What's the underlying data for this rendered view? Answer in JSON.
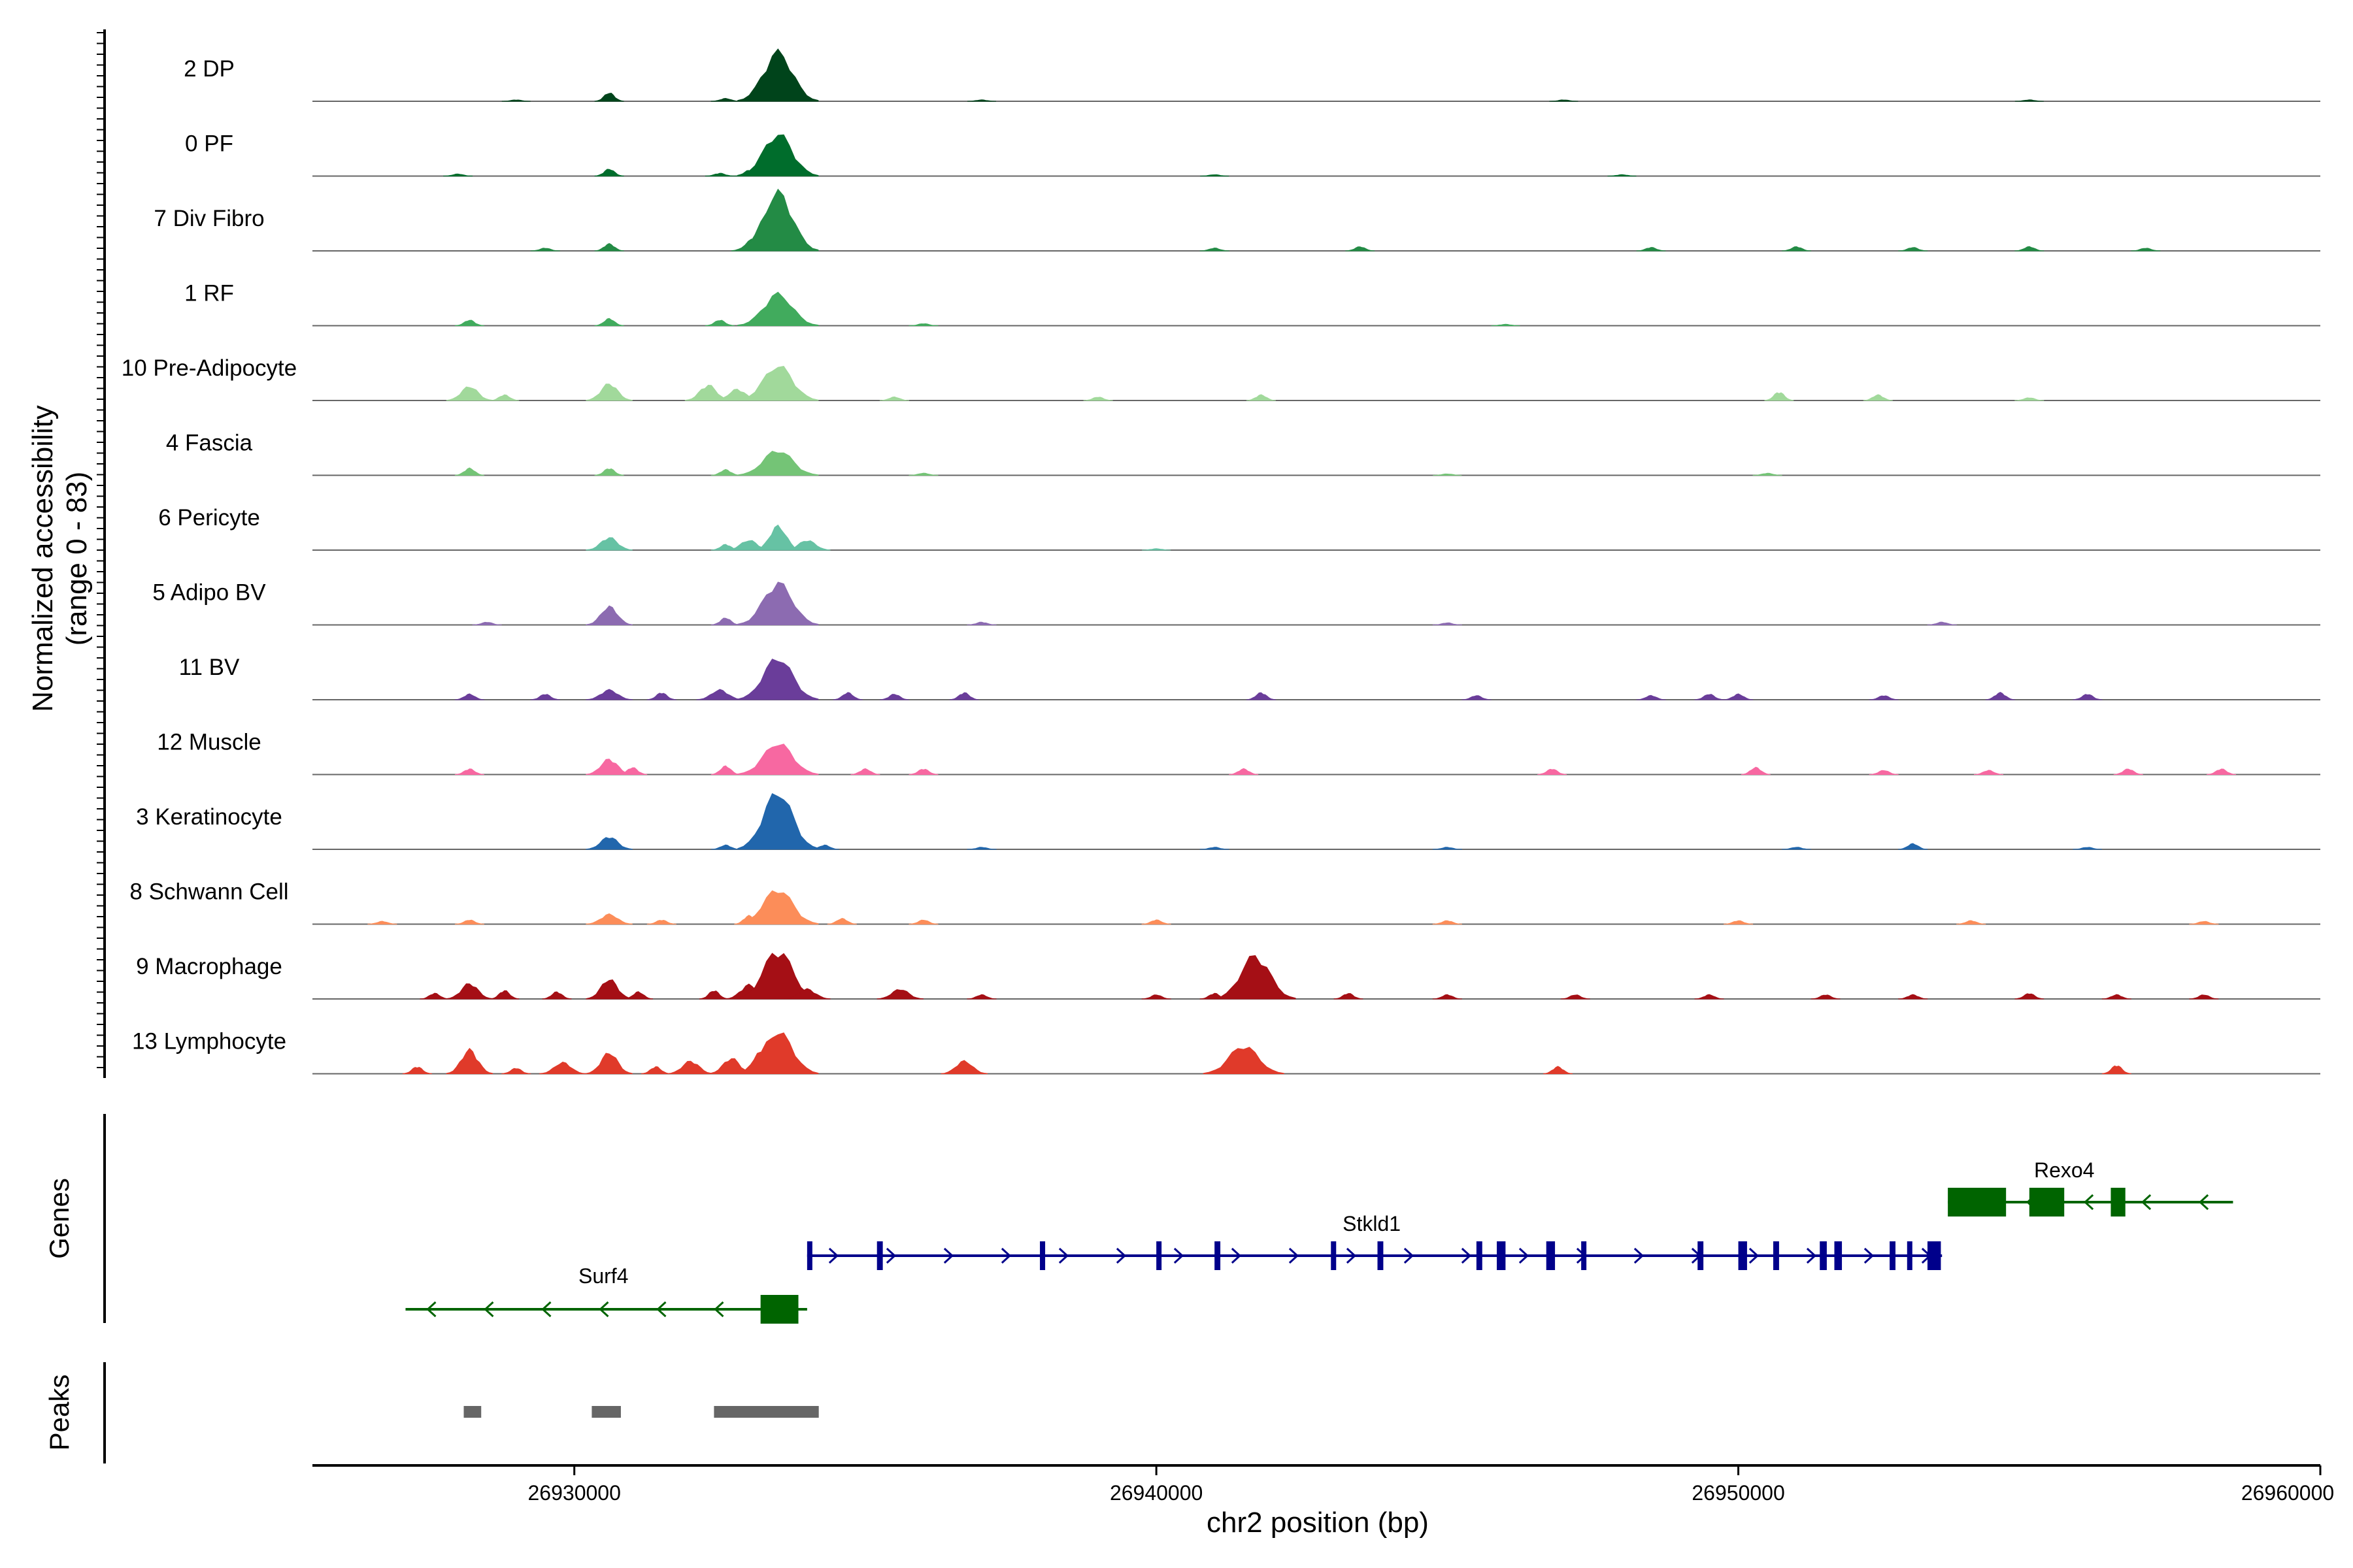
{
  "chart_data": {
    "type": "area",
    "title": "",
    "ylabel_line1": "Normalized accessibility",
    "ylabel_line2": "(range 0 - 83)",
    "xlabel": "chr2 position (bp)",
    "y_range": [
      0,
      83
    ],
    "xlim": [
      26925500,
      26960000
    ],
    "x_ticks": [
      {
        "value": 26930000,
        "label": "26930000"
      },
      {
        "value": 26940000,
        "label": "26940000"
      },
      {
        "value": 26950000,
        "label": "26950000"
      },
      {
        "value": 26960000,
        "label": "26960000"
      }
    ],
    "tracks": [
      {
        "name": "2 DP",
        "color": "#00441b",
        "peaks": [
          [
            26930600,
            12
          ],
          [
            26932600,
            4
          ],
          [
            26933100,
            8
          ],
          [
            26933500,
            70
          ],
          [
            26929000,
            2
          ],
          [
            26937000,
            2
          ],
          [
            26947000,
            2
          ],
          [
            26955000,
            2
          ]
        ]
      },
      {
        "name": "0 PF",
        "color": "#006d2c",
        "peaks": [
          [
            26930600,
            10
          ],
          [
            26932500,
            4
          ],
          [
            26933000,
            8
          ],
          [
            26933500,
            60
          ],
          [
            26928000,
            3
          ],
          [
            26941000,
            2
          ],
          [
            26948000,
            2
          ]
        ]
      },
      {
        "name": "7 Div Fibro",
        "color": "#238b45",
        "peaks": [
          [
            26930600,
            10
          ],
          [
            26933100,
            18
          ],
          [
            26933500,
            83
          ],
          [
            26929500,
            4
          ],
          [
            26941000,
            4
          ],
          [
            26943500,
            6
          ],
          [
            26948500,
            5
          ],
          [
            26951000,
            6
          ],
          [
            26953000,
            5
          ],
          [
            26955000,
            6
          ],
          [
            26957000,
            4
          ]
        ]
      },
      {
        "name": "1 RF",
        "color": "#41ab5d",
        "peaks": [
          [
            26928200,
            8
          ],
          [
            26930600,
            10
          ],
          [
            26932500,
            8
          ],
          [
            26933500,
            45
          ],
          [
            26936000,
            3
          ],
          [
            26946000,
            2
          ]
        ]
      },
      {
        "name": "10 Pre-Adipocyte",
        "color": "#a1d99b",
        "peaks": [
          [
            26928200,
            20
          ],
          [
            26928800,
            8
          ],
          [
            26930600,
            24
          ],
          [
            26932300,
            22
          ],
          [
            26932800,
            16
          ],
          [
            26933500,
            50
          ],
          [
            26935500,
            5
          ],
          [
            26939000,
            5
          ],
          [
            26941800,
            8
          ],
          [
            26950700,
            12
          ],
          [
            26952400,
            8
          ],
          [
            26955000,
            4
          ]
        ]
      },
      {
        "name": "4 Fascia",
        "color": "#74c476",
        "peaks": [
          [
            26928200,
            10
          ],
          [
            26930600,
            10
          ],
          [
            26932600,
            8
          ],
          [
            26933500,
            36
          ],
          [
            26936000,
            3
          ],
          [
            26945000,
            2
          ],
          [
            26950500,
            3
          ]
        ]
      },
      {
        "name": "6 Pericyte",
        "color": "#66c2a4",
        "peaks": [
          [
            26930600,
            18
          ],
          [
            26932600,
            8
          ],
          [
            26933000,
            14
          ],
          [
            26933500,
            34
          ],
          [
            26934000,
            14
          ],
          [
            26940000,
            2
          ]
        ]
      },
      {
        "name": "5 Adipo BV",
        "color": "#8c6bb1",
        "peaks": [
          [
            26928500,
            4
          ],
          [
            26930600,
            26
          ],
          [
            26932600,
            10
          ],
          [
            26933500,
            60
          ],
          [
            26937000,
            4
          ],
          [
            26945000,
            3
          ],
          [
            26953500,
            4
          ]
        ]
      },
      {
        "name": "11 BV",
        "color": "#6a3d9a",
        "peaks": [
          [
            26928200,
            8
          ],
          [
            26929500,
            8
          ],
          [
            26930600,
            14
          ],
          [
            26931500,
            10
          ],
          [
            26932500,
            14
          ],
          [
            26933500,
            60
          ],
          [
            26934700,
            10
          ],
          [
            26935500,
            8
          ],
          [
            26936700,
            10
          ],
          [
            26941800,
            10
          ],
          [
            26945500,
            6
          ],
          [
            26948500,
            6
          ],
          [
            26949500,
            8
          ],
          [
            26950000,
            8
          ],
          [
            26952500,
            6
          ],
          [
            26954500,
            10
          ],
          [
            26956000,
            8
          ]
        ]
      },
      {
        "name": "12 Muscle",
        "color": "#f768a1",
        "peaks": [
          [
            26928200,
            8
          ],
          [
            26930600,
            22
          ],
          [
            26931000,
            10
          ],
          [
            26932600,
            12
          ],
          [
            26933500,
            45
          ],
          [
            26935000,
            8
          ],
          [
            26936000,
            8
          ],
          [
            26941500,
            8
          ],
          [
            26946800,
            8
          ],
          [
            26950300,
            10
          ],
          [
            26952500,
            6
          ],
          [
            26954300,
            6
          ],
          [
            26956700,
            8
          ],
          [
            26958300,
            8
          ]
        ]
      },
      {
        "name": "3 Keratinocyte",
        "color": "#2166ac",
        "peaks": [
          [
            26930600,
            18
          ],
          [
            26932600,
            6
          ],
          [
            26933500,
            82
          ],
          [
            26934300,
            6
          ],
          [
            26937000,
            3
          ],
          [
            26941000,
            3
          ],
          [
            26945000,
            3
          ],
          [
            26951000,
            3
          ],
          [
            26953000,
            8
          ],
          [
            26956000,
            3
          ]
        ]
      },
      {
        "name": "8 Schwann Cell",
        "color": "#fc8d59",
        "peaks": [
          [
            26926700,
            4
          ],
          [
            26928200,
            6
          ],
          [
            26930600,
            14
          ],
          [
            26931500,
            6
          ],
          [
            26933000,
            12
          ],
          [
            26933500,
            50
          ],
          [
            26934600,
            8
          ],
          [
            26936000,
            6
          ],
          [
            26940000,
            6
          ],
          [
            26945000,
            5
          ],
          [
            26950000,
            5
          ],
          [
            26954000,
            5
          ],
          [
            26958000,
            4
          ]
        ]
      },
      {
        "name": "9 Macrophage",
        "color": "#a50f15",
        "peaks": [
          [
            26927600,
            8
          ],
          [
            26928200,
            22
          ],
          [
            26928800,
            12
          ],
          [
            26929700,
            10
          ],
          [
            26930600,
            28
          ],
          [
            26931100,
            10
          ],
          [
            26932400,
            12
          ],
          [
            26933000,
            20
          ],
          [
            26933500,
            70
          ],
          [
            26934000,
            14
          ],
          [
            26935600,
            14
          ],
          [
            26937000,
            6
          ],
          [
            26940000,
            6
          ],
          [
            26941000,
            8
          ],
          [
            26941700,
            62
          ],
          [
            26943300,
            8
          ],
          [
            26945000,
            6
          ],
          [
            26947200,
            6
          ],
          [
            26949500,
            6
          ],
          [
            26951500,
            6
          ],
          [
            26953000,
            6
          ],
          [
            26955000,
            8
          ],
          [
            26956500,
            6
          ],
          [
            26958000,
            6
          ]
        ]
      },
      {
        "name": "13 Lymphocyte",
        "color": "#e03a2a",
        "peaks": [
          [
            26927300,
            10
          ],
          [
            26928200,
            34
          ],
          [
            26929000,
            8
          ],
          [
            26929800,
            16
          ],
          [
            26930600,
            30
          ],
          [
            26931400,
            10
          ],
          [
            26932000,
            18
          ],
          [
            26932700,
            22
          ],
          [
            26933200,
            30
          ],
          [
            26933500,
            60
          ],
          [
            26936700,
            18
          ],
          [
            26941500,
            40
          ],
          [
            26946900,
            10
          ],
          [
            26956500,
            12
          ]
        ]
      }
    ],
    "genes": [
      {
        "name": "Surf4",
        "strand": "-",
        "color": "#006400",
        "start": 26927100,
        "end": 26934000,
        "exons": [
          [
            26933200,
            26933850
          ]
        ]
      },
      {
        "name": "Stkld1",
        "strand": "+",
        "color": "#00008b",
        "start": 26934000,
        "end": 26953500,
        "exons": [
          [
            26934000,
            26934070
          ],
          [
            26935200,
            26935300
          ],
          [
            26938000,
            26938060
          ],
          [
            26940000,
            26940060
          ],
          [
            26941000,
            26941100
          ],
          [
            26943000,
            26943060
          ],
          [
            26943800,
            26943900
          ],
          [
            26945500,
            26945600
          ],
          [
            26945850,
            26946000
          ],
          [
            26946700,
            26946850
          ],
          [
            26947300,
            26947350
          ],
          [
            26949300,
            26949400
          ],
          [
            26950000,
            26950150
          ],
          [
            26950600,
            26950700
          ],
          [
            26951400,
            26951520
          ],
          [
            26951650,
            26951780
          ],
          [
            26952600,
            26952700
          ],
          [
            26952900,
            26952950
          ],
          [
            26953250,
            26953480
          ]
        ]
      },
      {
        "name": "Rexo4",
        "strand": "-",
        "color": "#006400",
        "start": 26953600,
        "end": 26958500,
        "exons": [
          [
            26953600,
            26954600
          ],
          [
            26955000,
            26955600
          ],
          [
            26956400,
            26956650
          ]
        ]
      }
    ],
    "peak_regions": [
      [
        26928100,
        26928400
      ],
      [
        26930300,
        26930800
      ],
      [
        26932400,
        26934200
      ]
    ],
    "panels": {
      "genes_label": "Genes",
      "peaks_label": "Peaks"
    },
    "colors": {
      "axis": "#000000",
      "baseline": "#666666",
      "peak_region": "#666666"
    }
  }
}
